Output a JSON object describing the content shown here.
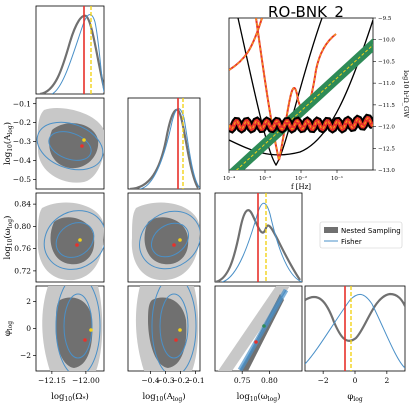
{
  "chart_data": {
    "type": "corner",
    "title": "RO-BNK_2",
    "parameters": [
      {
        "label": "log10(Ω*)",
        "range": [
          -12.22,
          -11.92
        ],
        "ticks": [
          -12.15,
          -12.0
        ],
        "tick_labels": [
          "−12.15",
          "−12.00"
        ],
        "truth": -12.03,
        "fisher_center": -12.0
      },
      {
        "label": "log10(A_log)",
        "range": [
          -0.55,
          -0.07
        ],
        "ticks": [
          -0.4,
          -0.3,
          -0.2,
          -0.1
        ],
        "tick_labels": [
          "−0.4",
          "−0.3",
          "−0.2",
          "−0.1"
        ],
        "tick_labels_y": [
          "−0.1",
          "−0.2",
          "−0.3",
          "−0.4",
          "−0.5"
        ],
        "ticks_y": [
          -0.1,
          -0.2,
          -0.3,
          -0.4,
          -0.5
        ],
        "truth": -0.28,
        "fisher_center": -0.25
      },
      {
        "label": "log10(ω_log)",
        "range": [
          0.7,
          0.86
        ],
        "ticks": [
          0.75,
          0.8
        ],
        "tick_labels": [
          "0.75",
          "0.80"
        ],
        "ticks_y": [
          0.84,
          0.8,
          0.76,
          0.72
        ],
        "tick_labels_y": [
          "0.84",
          "0.80",
          "0.76",
          "0.72"
        ],
        "truth": 0.772,
        "fisher_center": 0.78
      },
      {
        "label": "φ_log",
        "range": [
          -3.14,
          3.14
        ],
        "ticks": [
          -2,
          0,
          2
        ],
        "tick_labels": [
          "−2",
          "0",
          "2"
        ],
        "ticks_y": [
          2,
          0,
          -2
        ],
        "tick_labels_y": [
          "2",
          "0",
          "−2"
        ],
        "truth": -0.4,
        "fisher_center": 0.2
      }
    ],
    "legend": {
      "placement": "right-middle",
      "entries": [
        {
          "label": "Nested Sampling",
          "color": "#707070"
        },
        {
          "label": "Fisher",
          "color": "#4a90c8"
        }
      ]
    },
    "inset": {
      "xlabel": "f [Hz]",
      "ylabel": "log10 h²Ω_GW",
      "xscale": "log",
      "xlim": [
        0.0001,
        1
      ],
      "ylim": [
        -13,
        -9.5
      ],
      "x_tick_labels": [
        "10⁻⁴",
        "10⁻³",
        "10⁻²",
        "10⁻¹"
      ],
      "y_ticks": [
        -9.5,
        -10,
        -10.5,
        -11,
        -11.5,
        -12,
        -12.5,
        -13
      ],
      "y_tick_labels": [
        "−9.5",
        "−10.0",
        "−10.5",
        "−11.0",
        "−11.5",
        "−12.0",
        "−12.5",
        "−13.0"
      ]
    },
    "colors": {
      "truth": "#e8302a",
      "fisher_center": "#f2d21b",
      "nested": "#707070",
      "fisher": "#4a90c8",
      "inset_band": "#e8302a",
      "inset_line": "#f29a1b",
      "inset_green": "#2e8b57"
    }
  }
}
